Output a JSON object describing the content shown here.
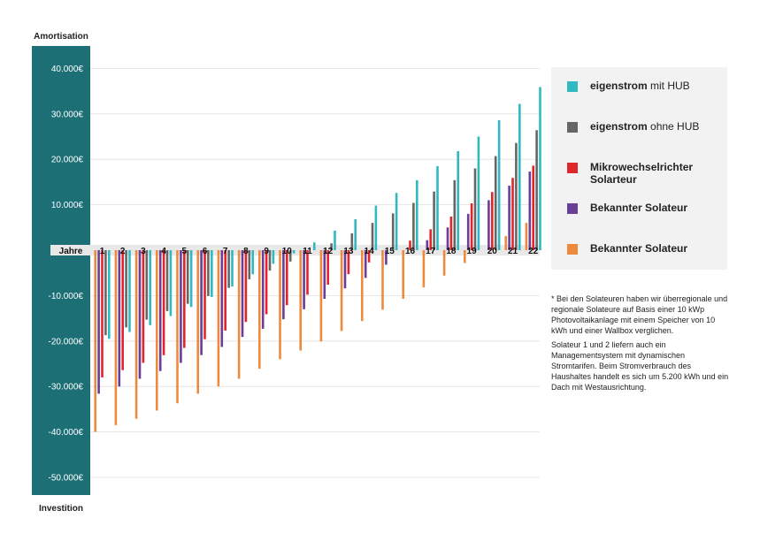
{
  "chart_data": {
    "type": "bar",
    "ylabel_top": "Amortisation",
    "ylabel_bottom": "Investition",
    "xlabel": "Jahre",
    "ylim": [
      -55000,
      45000
    ],
    "yticks": [
      40000,
      30000,
      20000,
      10000,
      0,
      -10000,
      -20000,
      -30000,
      -40000,
      -50000
    ],
    "ytick_labels": [
      "40.000€",
      "30.000€",
      "20.000€",
      "10.000€",
      "",
      "-10.000€",
      "-20.000€",
      "-30.000€",
      "-40.000€",
      "-50.000€"
    ],
    "categories": [
      "1",
      "2",
      "3",
      "4",
      "5",
      "6",
      "7",
      "8",
      "9",
      "10",
      "11",
      "12",
      "13",
      "14",
      "15",
      "16",
      "17",
      "18",
      "19",
      "20",
      "21",
      "22"
    ],
    "series": [
      {
        "name": "Bekannter Solateur",
        "color": "#ee8a3d",
        "values": [
          -40000,
          -38500,
          -37100,
          -35300,
          -33700,
          -31600,
          -30000,
          -28300,
          -26100,
          -24000,
          -22100,
          -20100,
          -17800,
          -15600,
          -13100,
          -10700,
          -8200,
          -5600,
          -2800,
          0,
          3100,
          6000
        ]
      },
      {
        "name": "Bekannter Solateur",
        "color": "#6a3e96",
        "values": [
          -31600,
          -30000,
          -28300,
          -26600,
          -24800,
          -23100,
          -21300,
          -19100,
          -17300,
          -15200,
          -13000,
          -10700,
          -8400,
          -6100,
          -3200,
          0,
          2200,
          5000,
          8000,
          11000,
          14200,
          17300
        ]
      },
      {
        "name": "Mikrowechselrichter Solarteur",
        "color": "#e0262b",
        "values": [
          -28000,
          -26400,
          -24800,
          -23100,
          -21500,
          -19600,
          -17700,
          -15800,
          -14100,
          -12100,
          -9800,
          -7600,
          -5300,
          -2700,
          0,
          2100,
          4600,
          7400,
          10300,
          12800,
          15900,
          18600
        ]
      },
      {
        "name": "eigenstrom ohne HUB",
        "color": "#666666",
        "values": [
          -18700,
          -17000,
          -15300,
          -13400,
          -11800,
          -10100,
          -8300,
          -6400,
          -4500,
          -2500,
          0,
          1500,
          3700,
          6000,
          8100,
          10400,
          12900,
          15400,
          18000,
          20700,
          23600,
          26400
        ]
      },
      {
        "name": "eigenstrom mit HUB",
        "color": "#31b9c2",
        "values": [
          -19500,
          -18000,
          -16500,
          -14500,
          -12500,
          -10300,
          -8000,
          -5300,
          -3000,
          -700,
          1700,
          4300,
          6800,
          9800,
          12600,
          15400,
          18500,
          21800,
          25000,
          28600,
          32200,
          35900
        ]
      }
    ]
  },
  "legend": [
    {
      "label_bold": "eigenstrom",
      "label_rest": " mit HUB",
      "color": "#31b9c2"
    },
    {
      "label_bold": "eigenstrom",
      "label_rest": " ohne HUB",
      "color": "#666666"
    },
    {
      "label_bold": "Mikrowechselrichter Solarteur",
      "label_rest": "",
      "color": "#e0262b"
    },
    {
      "label_bold": "Bekannter Solateur",
      "label_rest": "",
      "color": "#6a3e96"
    },
    {
      "label_bold": "Bekannter Solateur",
      "label_rest": "",
      "color": "#ee8a3d"
    }
  ],
  "footnotes": [
    "* Bei den Solateuren haben wir überregionale und regionale Solateure auf Basis einer 10 kWp Photovoltaikanlage mit einem Speicher von 10 kWh und einer Wallbox verglichen.",
    "Solateur 1 und 2 liefern auch ein Managementsystem mit dynamischen Stromtarifen. Beim Stromverbrauch des Haushaltes handelt es sich um 5.200 kWh und ein Dach mit Westausrichtung."
  ],
  "colors": {
    "axis_band": "#1d6f76",
    "grid": "#e0e0e0",
    "year_band": "#e8e8e8"
  }
}
